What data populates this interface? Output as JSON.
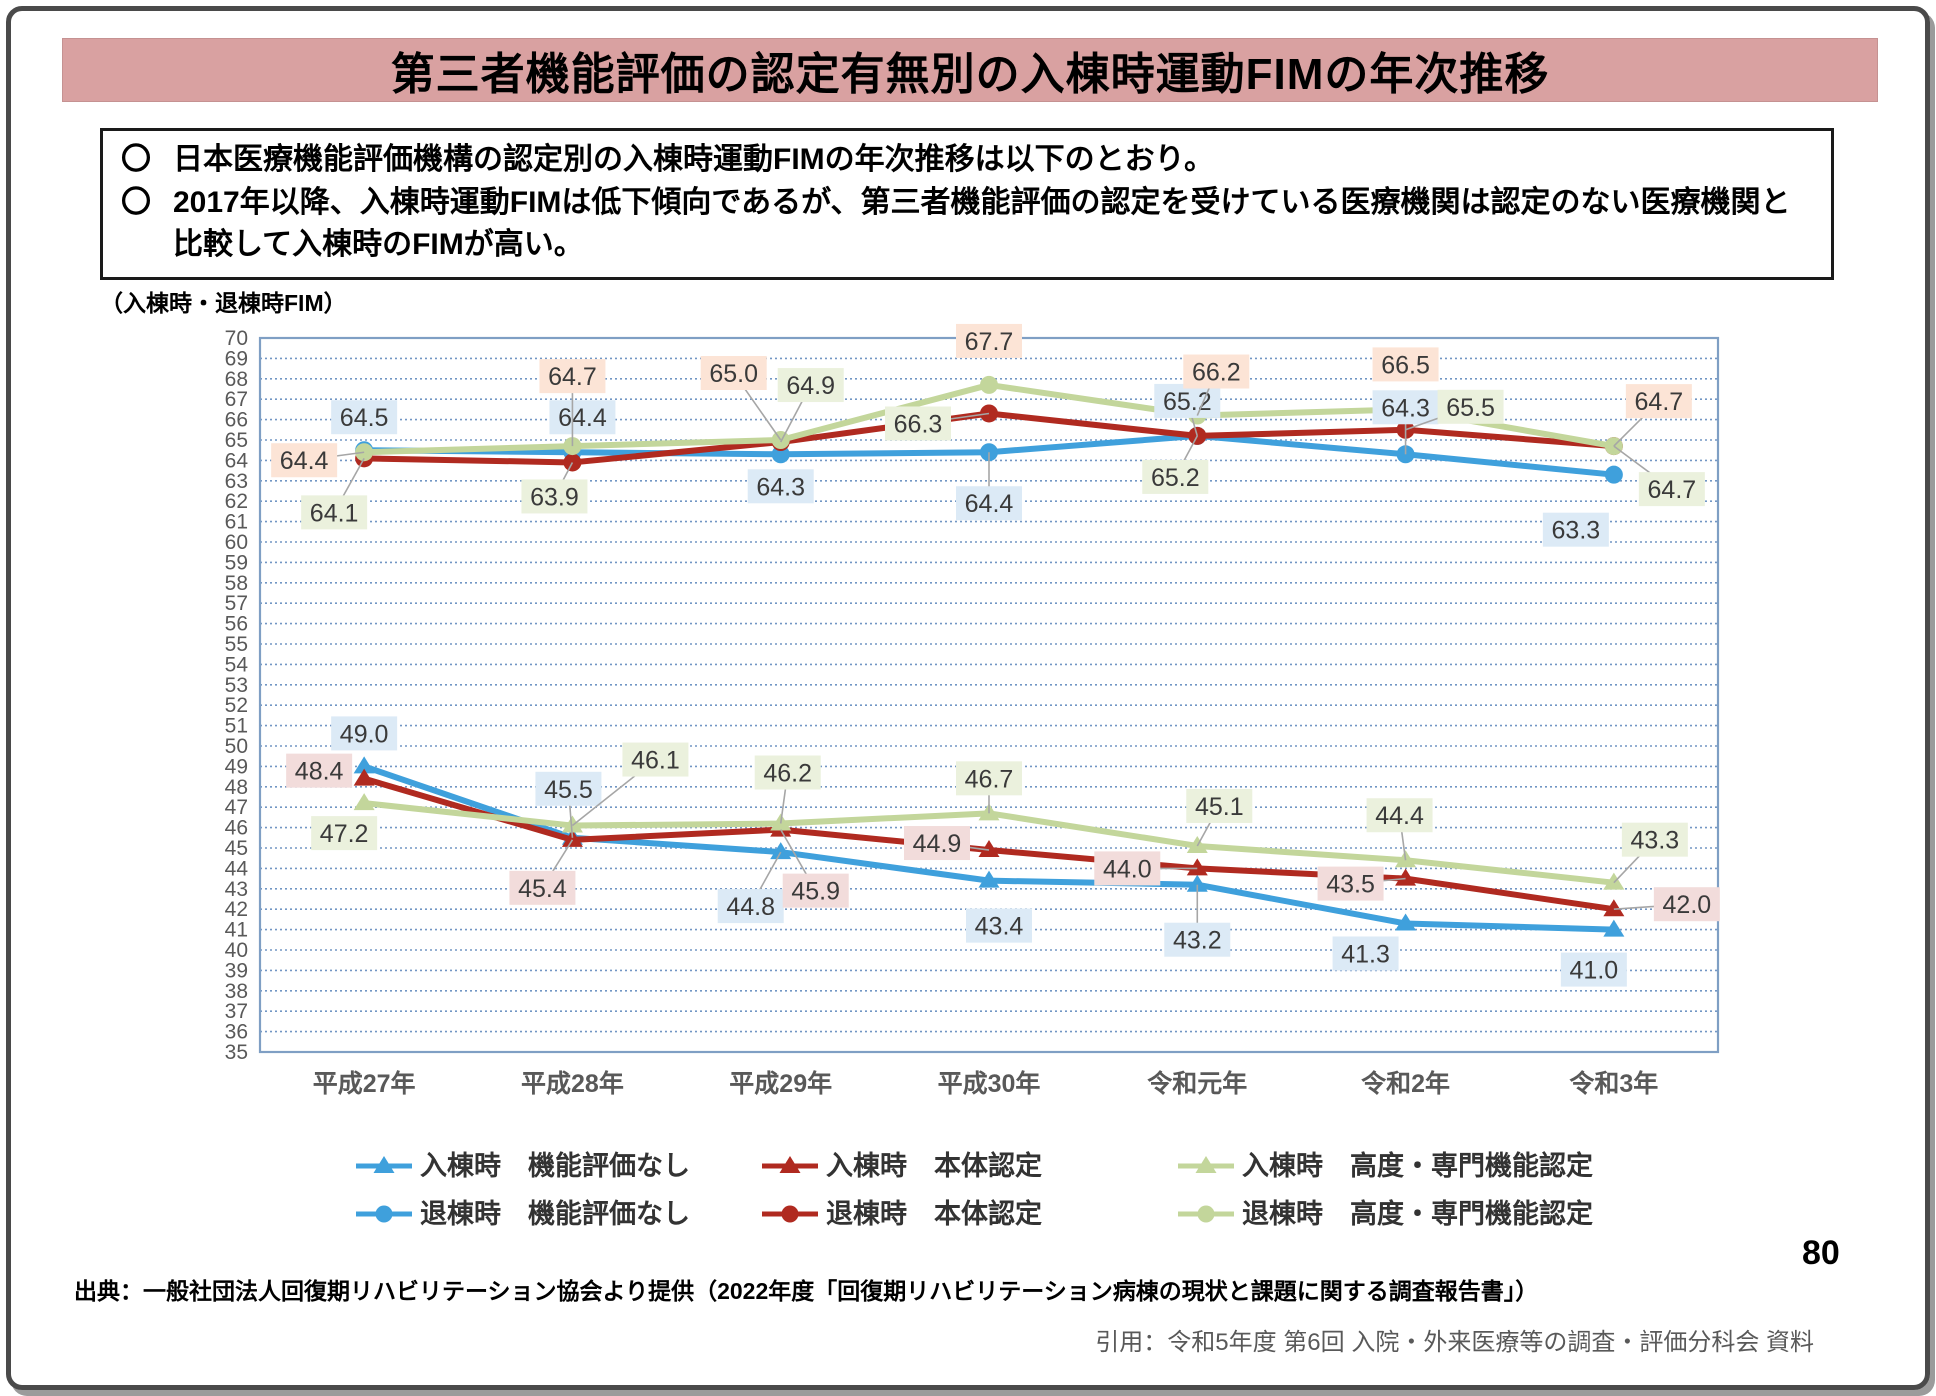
{
  "page": {
    "title": "第三者機能評価の認定有無別の入棟時運動FIMの年次推移",
    "bullet_marker": "〇",
    "bullets": [
      "日本医療機能評価機構の認定別の入棟時運動FIMの年次推移は以下のとおり。",
      "2017年以降、入棟時運動FIMは低下傾向であるが、第三者機能評価の認定を受けている医療機関は認定のない医療機関と比較して入棟時のFIMが高い。"
    ],
    "y_axis_unit": "（入棟時・退棟時FIM）",
    "page_number": "80",
    "source": "出典：一般社団法人回復期リハビリテーション協会より提供（2022年度「回復期リハビリテーション病棟の現状と課題に関する調査報告書」）",
    "citation": "引用：令和5年度 第6回 入院・外来医療等の調査・評価分科会 資料"
  },
  "chart_data": {
    "type": "line",
    "categories": [
      "平成27年",
      "平成28年",
      "平成29年",
      "平成30年",
      "令和元年",
      "令和2年",
      "令和3年"
    ],
    "ylim": [
      35,
      70
    ],
    "y_tick_step": 1,
    "grid": "horizontal-dotted",
    "legend_position": "bottom",
    "colors": {
      "none": "#3fa0dc",
      "main_cert": "#b02a20",
      "advanced_cert": "#c3d69b",
      "grid": "#7296c4",
      "plot_border": "#7f9fc4",
      "leader": "#a6a6a6",
      "tick_text": "#595959",
      "label_text": "#3a3a3a"
    },
    "series": [
      {
        "name": "入棟時　機能評価なし",
        "color": "#3fa0dc",
        "marker": "triangle",
        "label_bg": "#dceaf6",
        "values": [
          49.0,
          45.5,
          44.8,
          43.4,
          43.2,
          41.3,
          41.0
        ]
      },
      {
        "name": "入棟時　本体認定",
        "color": "#b02a20",
        "marker": "triangle",
        "label_bg": "#f2dcdb",
        "values": [
          48.4,
          45.4,
          45.9,
          44.9,
          44.0,
          43.5,
          42.0
        ]
      },
      {
        "name": "入棟時　高度・専門機能認定",
        "color": "#c3d69b",
        "marker": "triangle",
        "label_bg": "#ebf1dd",
        "values": [
          47.2,
          46.1,
          46.2,
          46.7,
          45.1,
          44.4,
          43.3
        ]
      },
      {
        "name": "退棟時　機能評価なし",
        "color": "#3fa0dc",
        "marker": "circle",
        "label_bg": "#dceaf6",
        "values": [
          64.5,
          64.4,
          64.3,
          64.4,
          65.2,
          64.3,
          63.3
        ]
      },
      {
        "name": "退棟時　本体認定",
        "color": "#b02a20",
        "marker": "circle",
        "label_bg": "#ebf1dd",
        "values": [
          64.1,
          63.9,
          64.9,
          66.3,
          65.2,
          65.5,
          64.7
        ]
      },
      {
        "name": "退棟時　高度・専門機能認定",
        "color": "#c3d69b",
        "marker": "circle",
        "label_bg": "#fce4d6",
        "values": [
          64.4,
          64.7,
          65.0,
          67.7,
          66.2,
          66.5,
          64.7
        ]
      }
    ]
  }
}
